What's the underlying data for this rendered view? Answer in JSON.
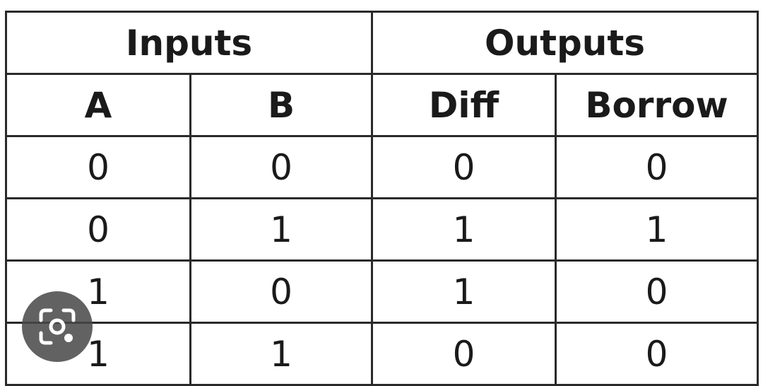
{
  "table": {
    "group_headers": {
      "inputs": "Inputs",
      "outputs": "Outputs"
    },
    "column_headers": [
      "A",
      "B",
      "Diff",
      "Borrow"
    ],
    "rows": [
      [
        "0",
        "0",
        "0",
        "0"
      ],
      [
        "0",
        "1",
        "1",
        "1"
      ],
      [
        "1",
        "0",
        "1",
        "0"
      ],
      [
        "1",
        "1",
        "0",
        "0"
      ]
    ]
  },
  "overlay": {
    "icon": "visual-search-lens-icon",
    "color": "#464646"
  }
}
